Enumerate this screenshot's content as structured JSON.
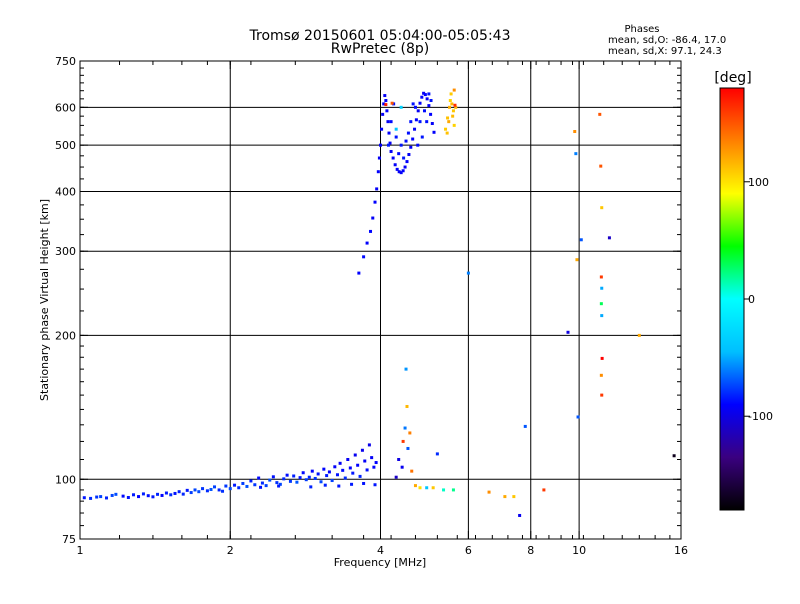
{
  "chart_data": {
    "type": "scatter",
    "title": "Tromsø 20150601 05:04:00-05:05:43",
    "subtitle": "RwPretec (8p)",
    "xlabel": "Frequency [MHz]",
    "ylabel": "Stationary phase Virtual Height [km]",
    "x_scale": "log",
    "y_scale": "log",
    "xlim": [
      1,
      16
    ],
    "ylim": [
      75,
      750
    ],
    "x_ticks": [
      {
        "value": 1,
        "label": "1"
      },
      {
        "value": 2,
        "label": "2"
      },
      {
        "value": 4,
        "label": "4"
      },
      {
        "value": 6,
        "label": "6"
      },
      {
        "value": 8,
        "label": "8"
      },
      {
        "value": 10,
        "label": "10"
      },
      {
        "value": 16,
        "label": "16"
      }
    ],
    "y_ticks": [
      {
        "value": 75,
        "label": "75"
      },
      {
        "value": 100,
        "label": "100"
      },
      {
        "value": 200,
        "label": "200"
      },
      {
        "value": 300,
        "label": "300"
      },
      {
        "value": 400,
        "label": "400"
      },
      {
        "value": 500,
        "label": "500"
      },
      {
        "value": 600,
        "label": "600"
      },
      {
        "value": 750,
        "label": "750"
      }
    ],
    "grid_x": [
      2,
      4,
      6,
      8,
      10
    ],
    "grid_y": [
      100,
      200,
      300,
      400,
      500,
      600
    ],
    "stats": {
      "heading": "Phases",
      "line_o": "mean, sd,O: -86.4, 17.0",
      "line_x": "mean, sd,X:  97.1, 24.3"
    },
    "colorbar": {
      "label": "[deg]",
      "range": [
        -180,
        180
      ],
      "ticks": [
        {
          "value": 100,
          "label": "100"
        },
        {
          "value": 0,
          "label": "0"
        },
        {
          "value": -100,
          "label": "-100"
        }
      ],
      "stops": [
        "#000000",
        "#3a0080",
        "#0000ff",
        "#00bfff",
        "#00ffff",
        "#00ff00",
        "#ffff00",
        "#ff8000",
        "#ff0000"
      ]
    },
    "colors": {
      "main_blue": "#1a3cff",
      "light_blue": "#1e90ff",
      "cyan": "#00c8ff",
      "yellow": "#e8e000",
      "orange": "#ff8c00",
      "red": "#ff2000",
      "green": "#20c020",
      "dark": "#200040"
    },
    "points": [
      [
        1.02,
        91.5,
        -85
      ],
      [
        1.05,
        91.2,
        -80
      ],
      [
        1.08,
        91.8,
        -78
      ],
      [
        1.1,
        92.0,
        -75
      ],
      [
        1.13,
        91.4,
        -82
      ],
      [
        1.16,
        92.5,
        -74
      ],
      [
        1.18,
        93.0,
        -72
      ],
      [
        1.22,
        92.2,
        -88
      ],
      [
        1.25,
        91.6,
        -86
      ],
      [
        1.28,
        92.8,
        -84
      ],
      [
        1.31,
        92.0,
        -90
      ],
      [
        1.34,
        93.2,
        -83
      ],
      [
        1.37,
        92.4,
        -87
      ],
      [
        1.4,
        91.9,
        -85
      ],
      [
        1.43,
        93.0,
        -82
      ],
      [
        1.46,
        92.5,
        -89
      ],
      [
        1.49,
        93.6,
        -84
      ],
      [
        1.52,
        92.8,
        -80
      ],
      [
        1.55,
        93.4,
        -86
      ],
      [
        1.58,
        94.2,
        -83
      ],
      [
        1.61,
        93.1,
        -81
      ],
      [
        1.64,
        94.8,
        -85
      ],
      [
        1.67,
        93.8,
        -76
      ],
      [
        1.7,
        95.0,
        -74
      ],
      [
        1.73,
        94.2,
        -72
      ],
      [
        1.76,
        95.6,
        -78
      ],
      [
        1.8,
        94.6,
        -80
      ],
      [
        1.83,
        95.2,
        -70
      ],
      [
        1.86,
        96.4,
        -75
      ],
      [
        1.9,
        95.0,
        -82
      ],
      [
        1.93,
        94.4,
        -79
      ],
      [
        1.96,
        96.8,
        -77
      ],
      [
        2.0,
        95.6,
        -73
      ],
      [
        2.04,
        97.2,
        -84
      ],
      [
        2.08,
        96.0,
        -80
      ],
      [
        2.12,
        98.0,
        -76
      ],
      [
        2.16,
        96.6,
        -71
      ],
      [
        2.2,
        99.2,
        -83
      ],
      [
        2.24,
        97.4,
        -78
      ],
      [
        2.28,
        100.6,
        -88
      ],
      [
        2.32,
        98.2,
        -80
      ],
      [
        2.36,
        97.0,
        -75
      ],
      [
        2.4,
        99.6,
        -72
      ],
      [
        2.44,
        101.2,
        -86
      ],
      [
        2.48,
        98.4,
        -79
      ],
      [
        2.52,
        97.6,
        -74
      ],
      [
        2.56,
        100.2,
        -81
      ],
      [
        2.6,
        102.0,
        -87
      ],
      [
        2.64,
        99.0,
        -77
      ],
      [
        2.68,
        101.6,
        -83
      ],
      [
        2.72,
        98.6,
        -70
      ],
      [
        2.76,
        100.8,
        -85
      ],
      [
        2.8,
        103.2,
        -88
      ],
      [
        2.84,
        99.8,
        -76
      ],
      [
        2.88,
        101.0,
        -82
      ],
      [
        2.92,
        104.0,
        -90
      ],
      [
        2.96,
        100.4,
        -78
      ],
      [
        3.0,
        102.6,
        -86
      ],
      [
        3.04,
        98.8,
        -73
      ],
      [
        3.08,
        105.0,
        -89
      ],
      [
        3.12,
        101.8,
        -84
      ],
      [
        3.16,
        103.6,
        -91
      ],
      [
        3.2,
        99.4,
        -75
      ],
      [
        3.24,
        106.2,
        -92
      ],
      [
        3.28,
        102.2,
        -86
      ],
      [
        3.32,
        108.0,
        -93
      ],
      [
        3.36,
        104.4,
        -88
      ],
      [
        3.4,
        100.6,
        -80
      ],
      [
        3.44,
        110.0,
        -94
      ],
      [
        3.48,
        105.6,
        -90
      ],
      [
        3.52,
        103.0,
        -85
      ],
      [
        3.56,
        112.4,
        -95
      ],
      [
        3.6,
        107.0,
        -91
      ],
      [
        3.64,
        101.4,
        -82
      ],
      [
        3.68,
        115.0,
        -96
      ],
      [
        3.72,
        109.2,
        -92
      ],
      [
        3.76,
        104.6,
        -87
      ],
      [
        3.8,
        118.0,
        -97
      ],
      [
        3.84,
        111.0,
        -93
      ],
      [
        3.88,
        106.0,
        -89
      ],
      [
        3.92,
        108.4,
        -90
      ],
      [
        2.3,
        96.2,
        -86
      ],
      [
        2.5,
        96.8,
        -84
      ],
      [
        2.9,
        96.4,
        -82
      ],
      [
        3.1,
        97.2,
        -83
      ],
      [
        3.3,
        96.8,
        -85
      ],
      [
        3.5,
        97.6,
        -84
      ],
      [
        3.7,
        98.0,
        -86
      ],
      [
        3.9,
        97.4,
        -85
      ],
      [
        3.62,
        270,
        -90
      ],
      [
        3.7,
        292,
        -88
      ],
      [
        3.76,
        312,
        -91
      ],
      [
        3.82,
        330,
        -89
      ],
      [
        3.86,
        352,
        -92
      ],
      [
        3.9,
        380,
        -90
      ],
      [
        3.93,
        405,
        -93
      ],
      [
        3.96,
        440,
        -91
      ],
      [
        3.98,
        470,
        -94
      ],
      [
        4.0,
        500,
        -92
      ],
      [
        4.02,
        540,
        -90
      ],
      [
        4.04,
        580,
        -93
      ],
      [
        4.06,
        610,
        -91
      ],
      [
        4.08,
        635,
        -94
      ],
      [
        4.1,
        620,
        -92
      ],
      [
        4.12,
        590,
        -90
      ],
      [
        4.14,
        560,
        -93
      ],
      [
        4.16,
        530,
        -91
      ],
      [
        4.18,
        505,
        -94
      ],
      [
        4.2,
        485,
        -92
      ],
      [
        4.24,
        470,
        -90
      ],
      [
        4.28,
        455,
        -93
      ],
      [
        4.32,
        445,
        -91
      ],
      [
        4.36,
        440,
        -94
      ],
      [
        4.4,
        438,
        -92
      ],
      [
        4.44,
        442,
        -90
      ],
      [
        4.48,
        450,
        -93
      ],
      [
        4.52,
        462,
        -91
      ],
      [
        4.56,
        478,
        -94
      ],
      [
        4.6,
        495,
        -92
      ],
      [
        4.64,
        515,
        -90
      ],
      [
        4.68,
        540,
        -93
      ],
      [
        4.72,
        565,
        -91
      ],
      [
        4.76,
        590,
        -94
      ],
      [
        4.8,
        612,
        -92
      ],
      [
        4.84,
        630,
        -90
      ],
      [
        4.88,
        642,
        -93
      ],
      [
        4.92,
        638,
        -91
      ],
      [
        4.96,
        625,
        -94
      ],
      [
        5.0,
        605,
        -92
      ],
      [
        5.04,
        580,
        -90
      ],
      [
        5.08,
        555,
        -93
      ],
      [
        5.12,
        532,
        -91
      ],
      [
        4.2,
        560,
        -88
      ],
      [
        4.3,
        520,
        -86
      ],
      [
        4.4,
        500,
        -85
      ],
      [
        4.5,
        510,
        -87
      ],
      [
        4.6,
        560,
        -86
      ],
      [
        4.7,
        600,
        -88
      ],
      [
        4.8,
        560,
        -85
      ],
      [
        4.9,
        590,
        -87
      ],
      [
        5.0,
        640,
        -86
      ],
      [
        4.15,
        500,
        -84
      ],
      [
        4.25,
        610,
        -86
      ],
      [
        4.35,
        480,
        -88
      ],
      [
        4.45,
        470,
        -85
      ],
      [
        4.55,
        530,
        -87
      ],
      [
        4.65,
        610,
        -86
      ],
      [
        4.75,
        500,
        -88
      ],
      [
        4.85,
        520,
        -85
      ],
      [
        4.95,
        560,
        -87
      ],
      [
        5.05,
        620,
        -86
      ],
      [
        5.4,
        540,
        108
      ],
      [
        5.45,
        570,
        112
      ],
      [
        5.5,
        600,
        118
      ],
      [
        5.52,
        620,
        105
      ],
      [
        5.56,
        610,
        115
      ],
      [
        5.6,
        590,
        110
      ],
      [
        5.48,
        560,
        120
      ],
      [
        5.54,
        640,
        108
      ],
      [
        5.58,
        575,
        114
      ],
      [
        5.62,
        550,
        106
      ],
      [
        5.44,
        530,
        112
      ],
      [
        5.66,
        600,
        116
      ],
      [
        5.62,
        652,
        130
      ],
      [
        5.64,
        606,
        165
      ],
      [
        4.1,
        608,
        170
      ],
      [
        4.22,
        612,
        150
      ],
      [
        4.3,
        540,
        -40
      ],
      [
        4.4,
        600,
        -30
      ],
      [
        4.5,
        170,
        -55
      ],
      [
        4.52,
        142,
        115
      ],
      [
        4.48,
        128,
        -62
      ],
      [
        4.58,
        125,
        135
      ],
      [
        4.44,
        120,
        160
      ],
      [
        4.54,
        116,
        -70
      ],
      [
        4.35,
        110,
        -100
      ],
      [
        4.42,
        106,
        -95
      ],
      [
        4.62,
        104,
        140
      ],
      [
        4.3,
        101,
        -110
      ],
      [
        4.7,
        97,
        120
      ],
      [
        4.8,
        96,
        100
      ],
      [
        4.95,
        96,
        -40
      ],
      [
        5.1,
        96,
        110
      ],
      [
        5.2,
        113,
        -80
      ],
      [
        5.35,
        95,
        10
      ],
      [
        5.6,
        95,
        20
      ],
      [
        6.0,
        270,
        -60
      ],
      [
        6.6,
        94,
        130
      ],
      [
        7.1,
        92,
        120
      ],
      [
        7.4,
        92,
        110
      ],
      [
        7.6,
        84,
        -95
      ],
      [
        7.8,
        129,
        -70
      ],
      [
        8.5,
        95,
        160
      ],
      [
        9.5,
        203,
        -100
      ],
      [
        9.8,
        534,
        130
      ],
      [
        9.85,
        480,
        -60
      ],
      [
        9.9,
        288,
        120
      ],
      [
        9.95,
        135,
        -70
      ],
      [
        10.1,
        317,
        -70
      ],
      [
        11.0,
        580,
        150
      ],
      [
        11.05,
        452,
        150
      ],
      [
        11.1,
        370,
        110
      ],
      [
        11.08,
        265,
        160
      ],
      [
        11.1,
        251,
        -50
      ],
      [
        11.08,
        233,
        30
      ],
      [
        11.1,
        220,
        -50
      ],
      [
        11.12,
        179,
        180
      ],
      [
        11.08,
        165,
        130
      ],
      [
        11.1,
        150,
        160
      ],
      [
        11.5,
        320,
        -110
      ],
      [
        13.2,
        200,
        120
      ],
      [
        15.5,
        112,
        -170
      ]
    ]
  }
}
